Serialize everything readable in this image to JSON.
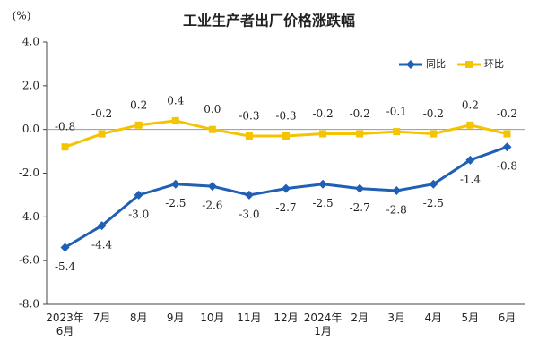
{
  "chart_data": {
    "type": "line",
    "title": "工业生产者出厂价格涨跌幅",
    "y_unit_label": "(%)",
    "categories": [
      "2023年\n6月",
      "7月",
      "8月",
      "9月",
      "10月",
      "11月",
      "12月",
      "2024年\n1月",
      "2月",
      "3月",
      "4月",
      "5月",
      "6月"
    ],
    "series": [
      {
        "name": "同比",
        "color": "#1f5fb5",
        "marker": "diamond",
        "label_position": "below",
        "values": [
          -5.4,
          -4.4,
          -3.0,
          -2.5,
          -2.6,
          -3.0,
          -2.7,
          -2.5,
          -2.7,
          -2.8,
          -2.5,
          -1.4,
          -0.8
        ],
        "value_labels": [
          "-5.4",
          "-4.4",
          "-3.0",
          "-2.5",
          "-2.6",
          "-3.0",
          "-2.7",
          "-2.5",
          "-2.7",
          "-2.8",
          "-2.5",
          "-1.4",
          "-0.8"
        ]
      },
      {
        "name": "环比",
        "color": "#f5c400",
        "marker": "square",
        "label_position": "above",
        "values": [
          -0.8,
          -0.2,
          0.2,
          0.4,
          0.0,
          -0.3,
          -0.3,
          -0.2,
          -0.2,
          -0.1,
          -0.2,
          0.2,
          -0.2
        ],
        "value_labels": [
          "-0.8",
          "-0.2",
          "0.2",
          "0.4",
          "0.0",
          "-0.3",
          "-0.3",
          "-0.2",
          "-0.2",
          "-0.1",
          "-0.2",
          "0.2",
          "-0.2"
        ]
      }
    ],
    "ylim": [
      -8,
      4
    ],
    "yticks": [
      {
        "value": 4,
        "label": "4.0"
      },
      {
        "value": 2,
        "label": "2.0"
      },
      {
        "value": 0,
        "label": "0.0"
      },
      {
        "value": -2,
        "label": "-2.0"
      },
      {
        "value": -4,
        "label": "-4.0"
      },
      {
        "value": -6,
        "label": "-6.0"
      },
      {
        "value": -8,
        "label": "-8.0"
      }
    ],
    "legend": "top-right",
    "grid": false
  }
}
